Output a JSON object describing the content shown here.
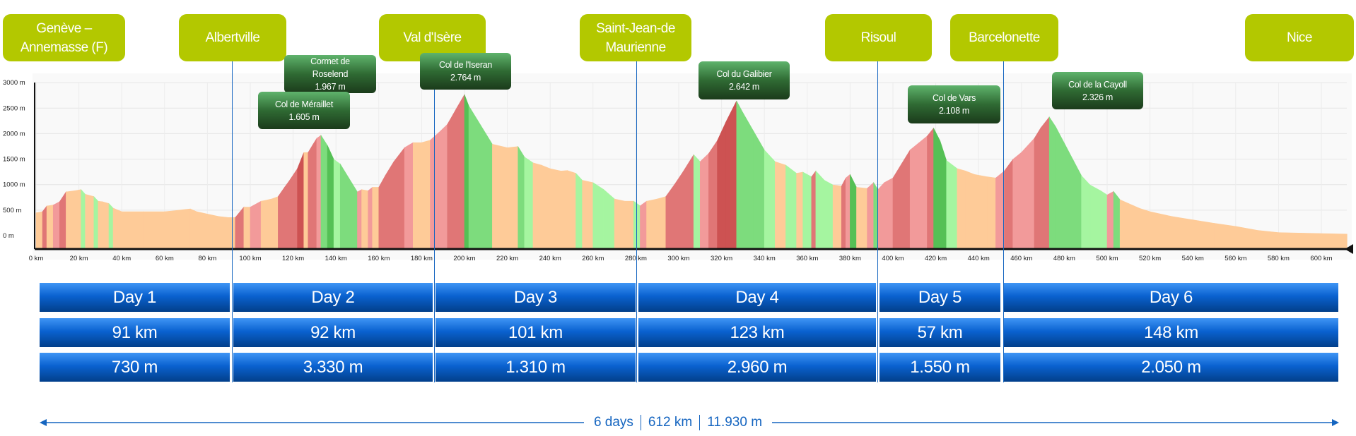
{
  "locations": [
    "Genève – Annemasse (F)",
    "Albertville",
    "Val d'Isère",
    "Saint-Jean-de Maurienne",
    "Risoul",
    "Barcelonette",
    "Nice"
  ],
  "peaks": [
    {
      "name": "Cormet de Roselend",
      "height": "1.967 m"
    },
    {
      "name": "Col de Méraillet",
      "height": "1.605 m"
    },
    {
      "name": "Col de l'Iseran",
      "height": "2.764 m"
    },
    {
      "name": "Col du Galibier",
      "height": "2.642 m"
    },
    {
      "name": "Col de Vars",
      "height": "2.108 m"
    },
    {
      "name": "Col de la Cayoll",
      "height": "2.326 m"
    }
  ],
  "days": [
    {
      "label": "Day 1",
      "distance": "91 km",
      "climb": "730 m"
    },
    {
      "label": "Day 2",
      "distance": "92 km",
      "climb": "3.330 m"
    },
    {
      "label": "Day 3",
      "distance": "101 km",
      "climb": "1.310 m"
    },
    {
      "label": "Day 4",
      "distance": "123 km",
      "climb": "2.960 m"
    },
    {
      "label": "Day 5",
      "distance": "57 km",
      "climb": "1.550 m"
    },
    {
      "label": "Day 6",
      "distance": "148 km",
      "climb": "2.050 m"
    }
  ],
  "summary": {
    "days": "6 days",
    "distance": "612 km",
    "climb": "11.930 m"
  },
  "colors": {
    "location": "#b3c800",
    "day_blue": "#0a62d0",
    "line_blue": "#1565c0"
  },
  "chart_data": {
    "type": "area",
    "title": "",
    "xlabel": "km",
    "ylabel": "m",
    "xlim": [
      0,
      612
    ],
    "ylim": [
      0,
      3000
    ],
    "xticks": [
      "0 km",
      "20 km",
      "40 km",
      "60 km",
      "80 km",
      "100 km",
      "120 km",
      "140 km",
      "160 km",
      "180 km",
      "200 km",
      "220 km",
      "240 km",
      "260 km",
      "280 km",
      "300 km",
      "320 km",
      "340 km",
      "360 km",
      "380 km",
      "400 km",
      "420 km",
      "440 km",
      "460 km",
      "480 km",
      "500 km",
      "520 km",
      "540 km",
      "560 km",
      "580 km",
      "600 km"
    ],
    "yticks": [
      "0 m",
      "500 m",
      "1000 m",
      "1500 m",
      "2000 m",
      "2500 m",
      "3000 m"
    ],
    "stage_ends_km": [
      91,
      183,
      284,
      407,
      464
    ],
    "profile": [
      [
        0,
        447
      ],
      [
        3,
        470
      ],
      [
        5,
        580
      ],
      [
        8,
        600
      ],
      [
        11,
        666
      ],
      [
        14,
        857
      ],
      [
        18,
        880
      ],
      [
        21,
        903
      ],
      [
        23,
        810
      ],
      [
        27,
        766
      ],
      [
        29,
        675
      ],
      [
        31,
        666
      ],
      [
        34,
        630
      ],
      [
        36,
        540
      ],
      [
        40,
        470
      ],
      [
        50,
        470
      ],
      [
        60,
        470
      ],
      [
        65,
        490
      ],
      [
        70,
        515
      ],
      [
        72,
        525
      ],
      [
        75,
        470
      ],
      [
        80,
        424
      ],
      [
        85,
        378
      ],
      [
        90,
        355
      ],
      [
        93,
        355
      ],
      [
        97,
        560
      ],
      [
        100,
        560
      ],
      [
        105,
        675
      ],
      [
        108,
        700
      ],
      [
        110,
        720
      ],
      [
        113,
        766
      ],
      [
        116,
        948
      ],
      [
        118,
        1062
      ],
      [
        122,
        1313
      ],
      [
        125,
        1630
      ],
      [
        127,
        1630
      ],
      [
        129,
        1770
      ],
      [
        131,
        1906
      ],
      [
        133,
        1967
      ],
      [
        136,
        1770
      ],
      [
        139,
        1495
      ],
      [
        142,
        1404
      ],
      [
        146,
        1130
      ],
      [
        150,
        857
      ],
      [
        152,
        903
      ],
      [
        155,
        880
      ],
      [
        157,
        948
      ],
      [
        160,
        948
      ],
      [
        163,
        1176
      ],
      [
        167,
        1450
      ],
      [
        172,
        1724
      ],
      [
        176,
        1824
      ],
      [
        180,
        1824
      ],
      [
        184,
        1870
      ],
      [
        188,
        2020
      ],
      [
        192,
        2180
      ],
      [
        196,
        2476
      ],
      [
        200,
        2764
      ],
      [
        202,
        2545
      ],
      [
        206,
        2271
      ],
      [
        210,
        1997
      ],
      [
        213,
        1792
      ],
      [
        220,
        1724
      ],
      [
        225,
        1746
      ],
      [
        228,
        1541
      ],
      [
        232,
        1427
      ],
      [
        236,
        1381
      ],
      [
        240,
        1313
      ],
      [
        245,
        1267
      ],
      [
        248,
        1277
      ],
      [
        252,
        1222
      ],
      [
        255,
        1085
      ],
      [
        260,
        1040
      ],
      [
        265,
        903
      ],
      [
        270,
        720
      ],
      [
        275,
        675
      ],
      [
        279,
        675
      ],
      [
        282,
        584
      ],
      [
        285,
        675
      ],
      [
        290,
        720
      ],
      [
        294,
        766
      ],
      [
        298,
        1000
      ],
      [
        302,
        1250
      ],
      [
        307,
        1587
      ],
      [
        310,
        1450
      ],
      [
        314,
        1610
      ],
      [
        318,
        1860
      ],
      [
        322,
        2225
      ],
      [
        327,
        2642
      ],
      [
        330,
        2408
      ],
      [
        335,
        2043
      ],
      [
        340,
        1678
      ],
      [
        345,
        1450
      ],
      [
        350,
        1381
      ],
      [
        355,
        1222
      ],
      [
        358,
        1245
      ],
      [
        362,
        1154
      ],
      [
        364,
        1267
      ],
      [
        368,
        1085
      ],
      [
        372,
        994
      ],
      [
        376,
        971
      ],
      [
        378,
        1131
      ],
      [
        380,
        1200
      ],
      [
        383,
        948
      ],
      [
        388,
        926
      ],
      [
        391,
        1040
      ],
      [
        393,
        903
      ],
      [
        396,
        1040
      ],
      [
        400,
        1131
      ],
      [
        404,
        1404
      ],
      [
        408,
        1678
      ],
      [
        412,
        1815
      ],
      [
        416,
        1952
      ],
      [
        419,
        2108
      ],
      [
        422,
        1860
      ],
      [
        425,
        1473
      ],
      [
        430,
        1313
      ],
      [
        434,
        1267
      ],
      [
        438,
        1200
      ],
      [
        444,
        1154
      ],
      [
        448,
        1131
      ],
      [
        452,
        1267
      ],
      [
        456,
        1495
      ],
      [
        460,
        1632
      ],
      [
        463,
        1769
      ],
      [
        466,
        1906
      ],
      [
        469,
        2112
      ],
      [
        473,
        2326
      ],
      [
        476,
        2134
      ],
      [
        480,
        1815
      ],
      [
        484,
        1495
      ],
      [
        488,
        1176
      ],
      [
        492,
        994
      ],
      [
        497,
        880
      ],
      [
        500,
        798
      ],
      [
        503,
        866
      ],
      [
        506,
        705
      ],
      [
        510,
        630
      ],
      [
        515,
        538
      ],
      [
        520,
        470
      ],
      [
        530,
        378
      ],
      [
        540,
        310
      ],
      [
        550,
        242
      ],
      [
        560,
        182
      ],
      [
        570,
        105
      ],
      [
        580,
        60
      ],
      [
        612,
        30
      ]
    ]
  }
}
